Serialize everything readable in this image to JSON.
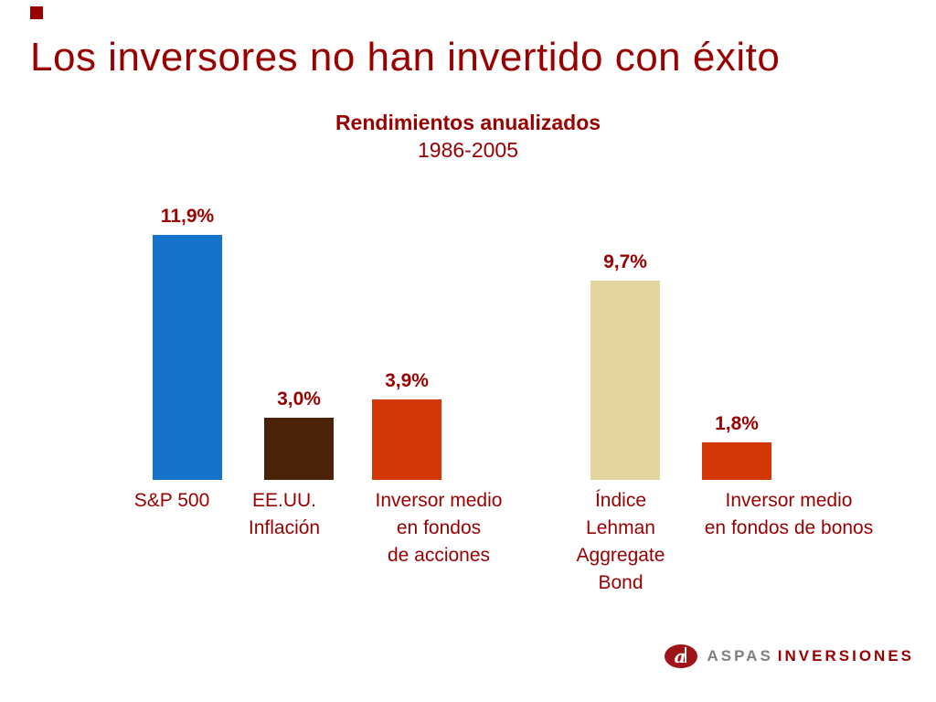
{
  "slide": {
    "title": "Los inversores no han invertido con éxito"
  },
  "chart_data": {
    "type": "bar",
    "title": "Rendimientos anualizados",
    "subtitle": "1986-2005",
    "categories": [
      "S&P 500",
      "EE.UU. Inflación",
      "Inversor medio en fondos de acciones",
      "Índice Lehman Aggregate Bond",
      "Inversor medio en fondos de bonos"
    ],
    "category_labels_display": [
      "S&P 500",
      "EE.UU.\nInflación",
      "Inversor medio\nen fondos\nde acciones",
      "Índice\nLehman\nAggregate\nBond",
      "Inversor medio\nen fondos de bonos"
    ],
    "values": [
      11.9,
      3.0,
      3.9,
      9.7,
      1.8
    ],
    "value_labels": [
      "11,9%",
      "3,0%",
      "3,9%",
      "9,7%",
      "1,8%"
    ],
    "bar_colors": [
      "#1472C8",
      "#4A2208",
      "#D33708",
      "#E3D59D",
      "#D33708"
    ],
    "unit": "%",
    "ylim": [
      0,
      12.5
    ],
    "grid": false,
    "legend": "none"
  },
  "colors": {
    "text_maroon": "#990000",
    "background": "#FFFFFF",
    "logo_gray": "#7F7F7F"
  },
  "logo": {
    "brand_primary": "ASPAS",
    "brand_secondary": "INVERSIONES"
  }
}
